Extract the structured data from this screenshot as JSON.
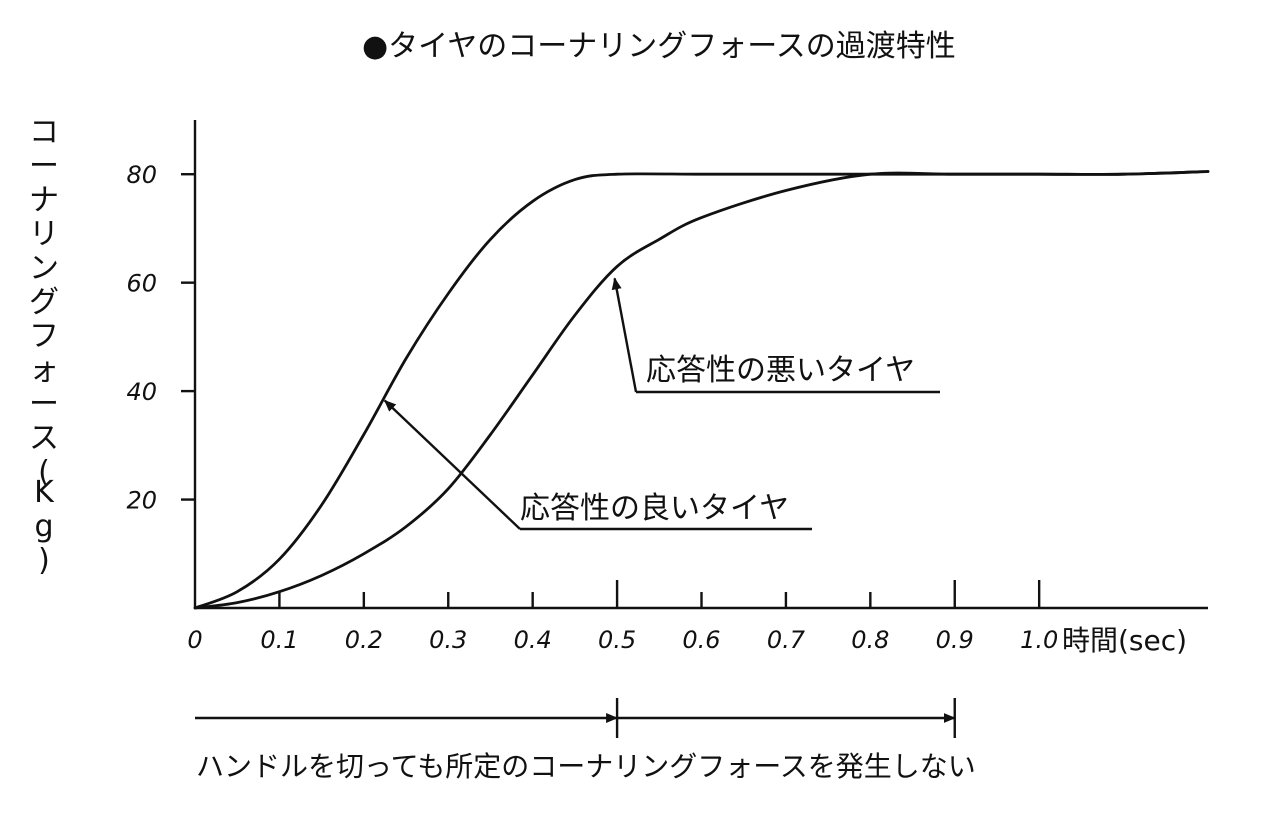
{
  "title": "●タイヤのコーナリングフォースの過渡特性",
  "footnote": "ハンドルを切っても所定のコーナリングフォースを発生しない",
  "colors": {
    "ink": "#111111",
    "background": "#ffffff"
  },
  "chart_data": {
    "type": "line",
    "title": "●タイヤのコーナリングフォースの過渡特性",
    "xlabel": "時間(sec)",
    "ylabel": "コーナリングフォース(Kg)",
    "xlim": [
      0,
      1.2
    ],
    "ylim": [
      0,
      90
    ],
    "grid": false,
    "legend": "none",
    "x_ticks": [
      0,
      0.1,
      0.2,
      0.3,
      0.4,
      0.5,
      0.6,
      0.7,
      0.8,
      0.9,
      1.0
    ],
    "x_tick_labels": [
      "0",
      "0.1",
      "0.2",
      "0.3",
      "0.4",
      "0.5",
      "0.6",
      "0.7",
      "0.8",
      "0.9",
      "1.0"
    ],
    "y_ticks": [
      20,
      40,
      60,
      80
    ],
    "y_tick_labels": [
      "20",
      "40",
      "60",
      "80"
    ],
    "series": [
      {
        "x": [
          0,
          0.05,
          0.1,
          0.15,
          0.2,
          0.25,
          0.3,
          0.35,
          0.4,
          0.45,
          0.5,
          0.6,
          0.7,
          0.8,
          0.9,
          1.0,
          1.1,
          1.2
        ],
        "y": [
          0,
          3,
          9,
          19,
          32,
          46,
          58,
          68,
          75,
          79,
          80,
          80,
          80,
          80,
          80,
          80,
          80,
          80.5
        ]
      },
      {
        "x": [
          0,
          0.05,
          0.1,
          0.15,
          0.2,
          0.25,
          0.3,
          0.35,
          0.4,
          0.45,
          0.5,
          0.55,
          0.6,
          0.7,
          0.8,
          0.9,
          1.0,
          1.1,
          1.2
        ],
        "y": [
          0,
          1,
          3,
          6,
          10,
          15,
          22,
          32,
          43,
          54,
          63,
          68,
          72,
          77,
          80,
          80,
          80,
          80,
          80.5
        ]
      }
    ],
    "annotations": [
      {
        "text": "応答性の良いタイヤ",
        "target": [
          0.22,
          39
        ]
      },
      {
        "text": "応答性の悪いタイヤ",
        "target": [
          0.49,
          63
        ]
      }
    ],
    "interval": {
      "x_start": 0,
      "x_mid": 0.5,
      "x_end": 0.9
    }
  }
}
